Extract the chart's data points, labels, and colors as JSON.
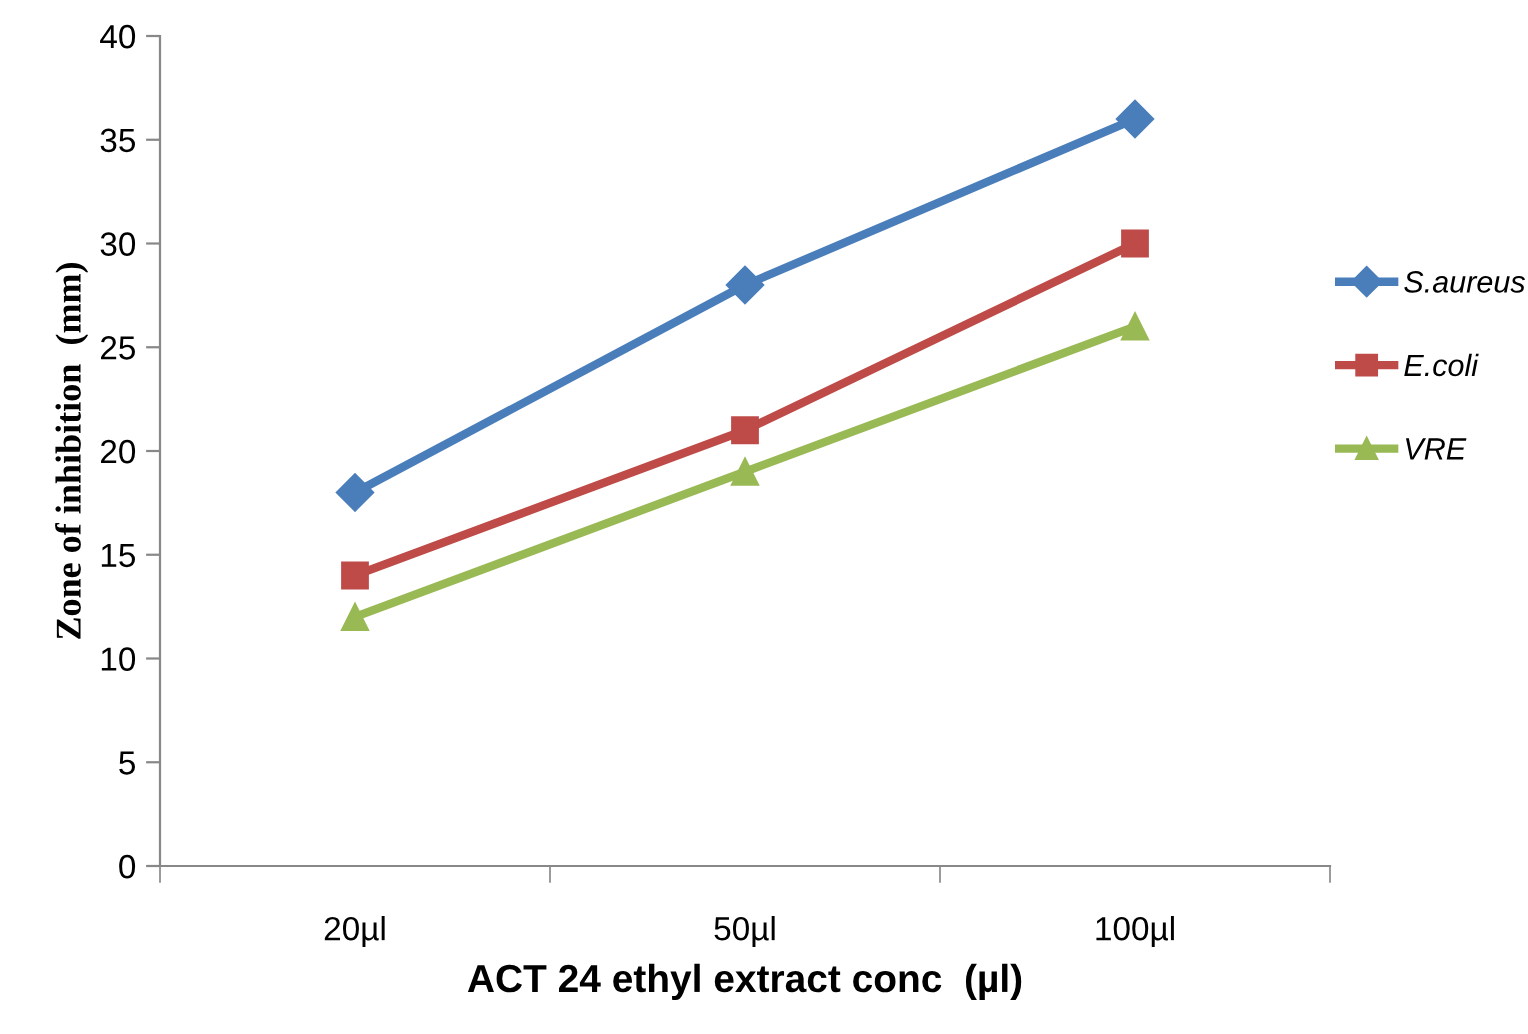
{
  "chart_data": {
    "type": "line",
    "xlabel": "ACT 24 ethyl extract conc  (µl)",
    "ylabel": "Zone of inhibition  (mm)",
    "categories": [
      "20µl",
      "50µl",
      "100µl"
    ],
    "ylim": [
      0,
      40
    ],
    "yticks": [
      0,
      5,
      10,
      15,
      20,
      25,
      30,
      35,
      40
    ],
    "grid": false,
    "legend": "right",
    "series": [
      {
        "name": "S.aureus",
        "color": "#4a7ebb",
        "marker": "diamond",
        "values": [
          18,
          28,
          36
        ]
      },
      {
        "name": "E.coli",
        "color": "#be4b48",
        "marker": "square",
        "values": [
          14,
          21,
          30
        ]
      },
      {
        "name": "VRE",
        "color": "#98b954",
        "marker": "triangle",
        "values": [
          12,
          19,
          26
        ]
      }
    ]
  }
}
